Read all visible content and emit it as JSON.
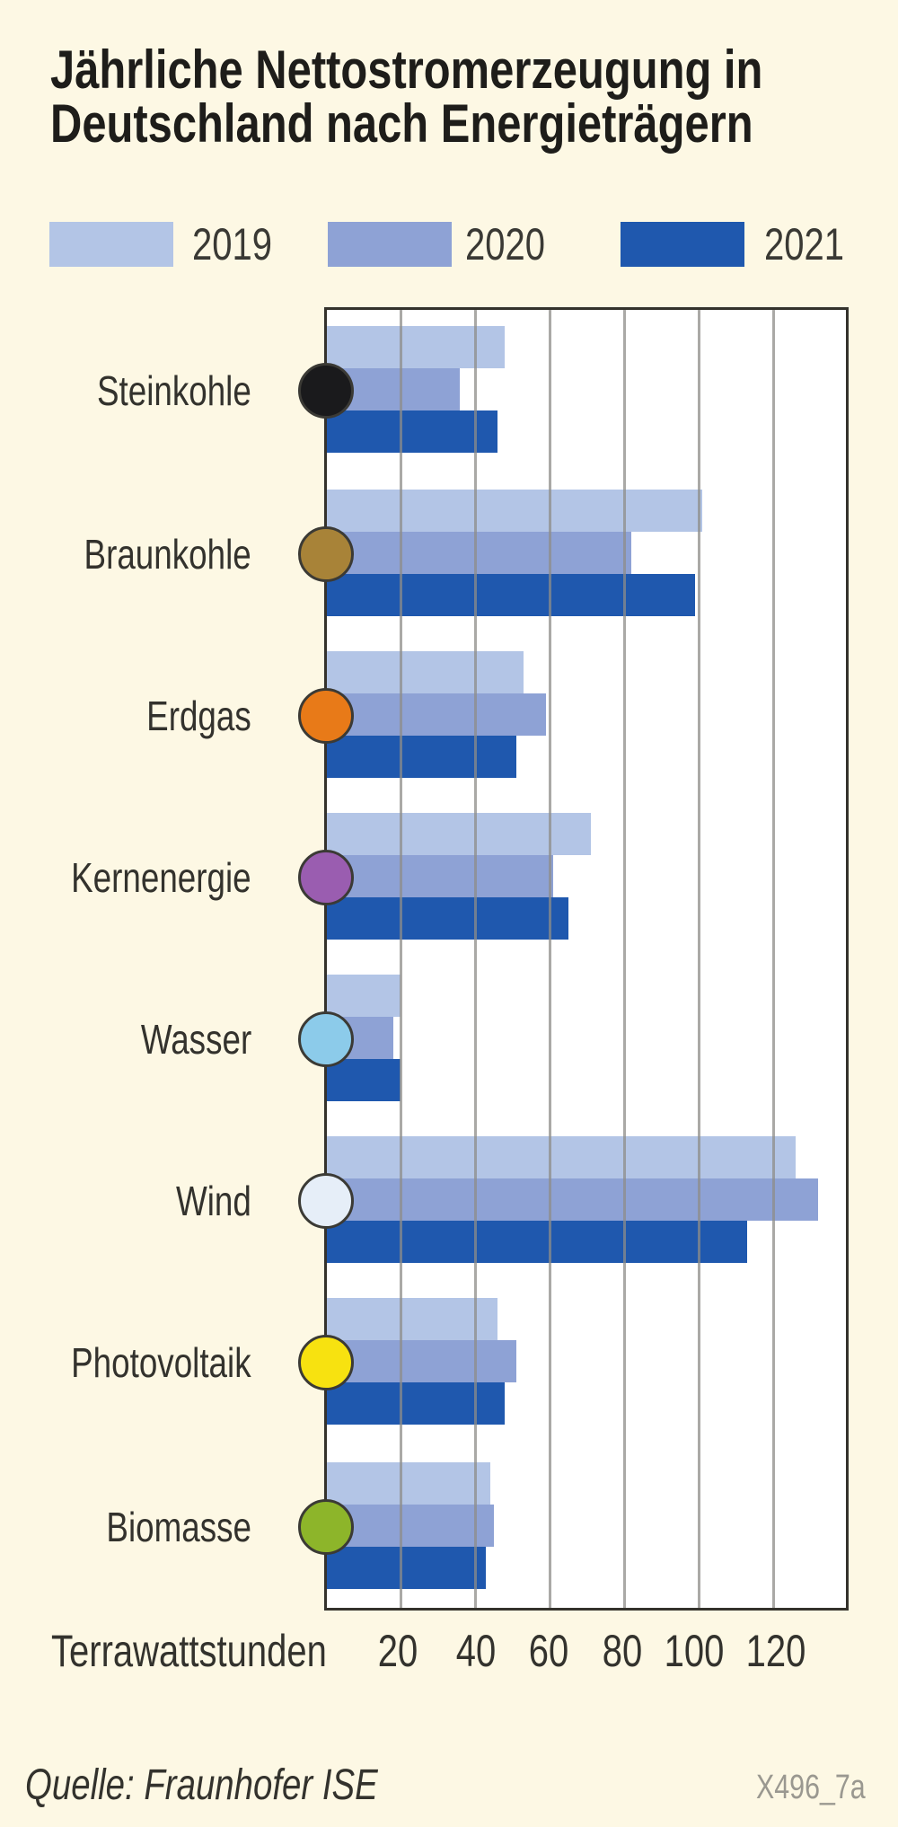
{
  "title": {
    "line1": "Jährliche Nettostromerzeugung in",
    "line2": "Deutschland nach Energieträgern"
  },
  "legend": [
    {
      "label": "2019",
      "color": "#b3c5e6"
    },
    {
      "label": "2020",
      "color": "#8ea2d5"
    },
    {
      "label": "2021",
      "color": "#1f58ae"
    }
  ],
  "categories": [
    {
      "label": "Steinkohle",
      "icon": "black-circle-icon",
      "color": "#1a1a1c"
    },
    {
      "label": "Braunkohle",
      "icon": "brown-circle-icon",
      "color": "#a88338"
    },
    {
      "label": "Erdgas",
      "icon": "orange-circle-icon",
      "color": "#e87a18"
    },
    {
      "label": "Kernenergie",
      "icon": "purple-circle-icon",
      "color": "#9a5db0"
    },
    {
      "label": "Wasser",
      "icon": "light-blue-circle-icon",
      "color": "#8ccbea"
    },
    {
      "label": "Wind",
      "icon": "white-circle-icon",
      "color": "#e6eef8"
    },
    {
      "label": "Photovoltaik",
      "icon": "yellow-circle-icon",
      "color": "#f7e210"
    },
    {
      "label": "Biomasse",
      "icon": "green-circle-icon",
      "color": "#8db52a"
    }
  ],
  "axis": {
    "title": "Terrawattstunden",
    "ticks": [
      "20",
      "40",
      "60",
      "80",
      "100",
      "120"
    ]
  },
  "footer": {
    "source": "Quelle: Fraunhofer ISE",
    "code": "X496_7a"
  },
  "chart_data": {
    "type": "bar",
    "orientation": "horizontal",
    "title": "Jährliche Nettostromerzeugung in Deutschland nach Energieträgern",
    "categories": [
      "Steinkohle",
      "Braunkohle",
      "Erdgas",
      "Kernenergie",
      "Wasser",
      "Wind",
      "Photovoltaik",
      "Biomasse"
    ],
    "series": [
      {
        "name": "2019",
        "color": "#b3c5e6",
        "values": [
          48,
          101,
          53,
          71,
          20,
          126,
          46,
          44
        ]
      },
      {
        "name": "2020",
        "color": "#8ea2d5",
        "values": [
          36,
          82,
          59,
          61,
          18,
          132,
          51,
          45
        ]
      },
      {
        "name": "2021",
        "color": "#1f58ae",
        "values": [
          46,
          99,
          51,
          65,
          20,
          113,
          48,
          43
        ]
      }
    ],
    "xlabel": "Terrawattstunden",
    "ylabel": "",
    "xticks": [
      20,
      40,
      60,
      80,
      100,
      120
    ],
    "xlim": [
      0,
      140
    ],
    "grid": true,
    "legend_position": "top",
    "source": "Quelle: Fraunhofer ISE"
  }
}
